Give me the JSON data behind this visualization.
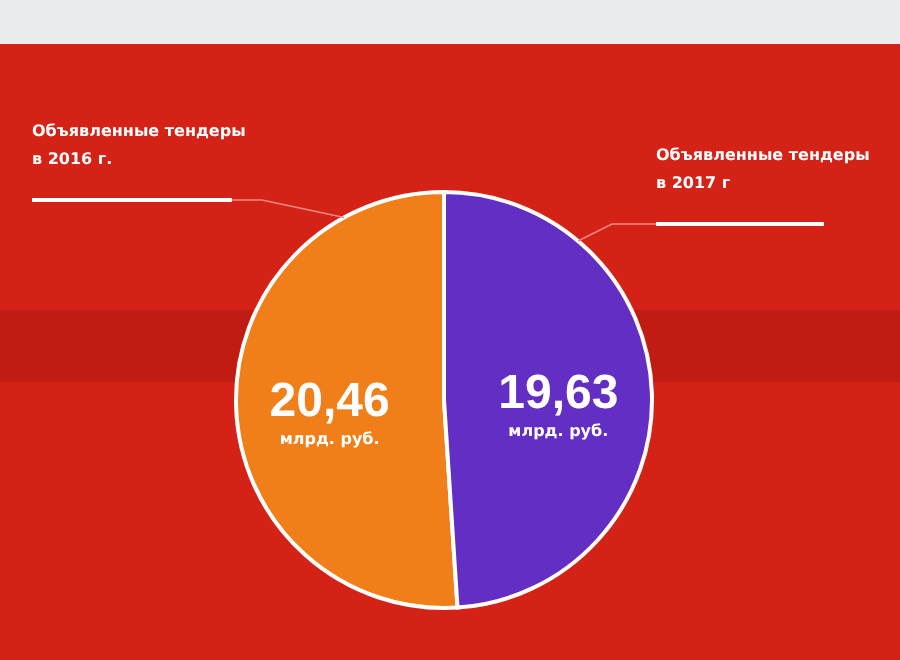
{
  "chart_data": {
    "type": "pie",
    "categories": [
      "Объявленные тендеры в 2016 г.",
      "Объявленные тендеры в 2017 г"
    ],
    "values": [
      20.46,
      19.63
    ],
    "colors": [
      "#f07f19",
      "#632ec4"
    ],
    "value_labels": [
      "20,46",
      "19,63"
    ],
    "annotations": [
      "млрд. руб.",
      "млрд. руб."
    ]
  }
}
